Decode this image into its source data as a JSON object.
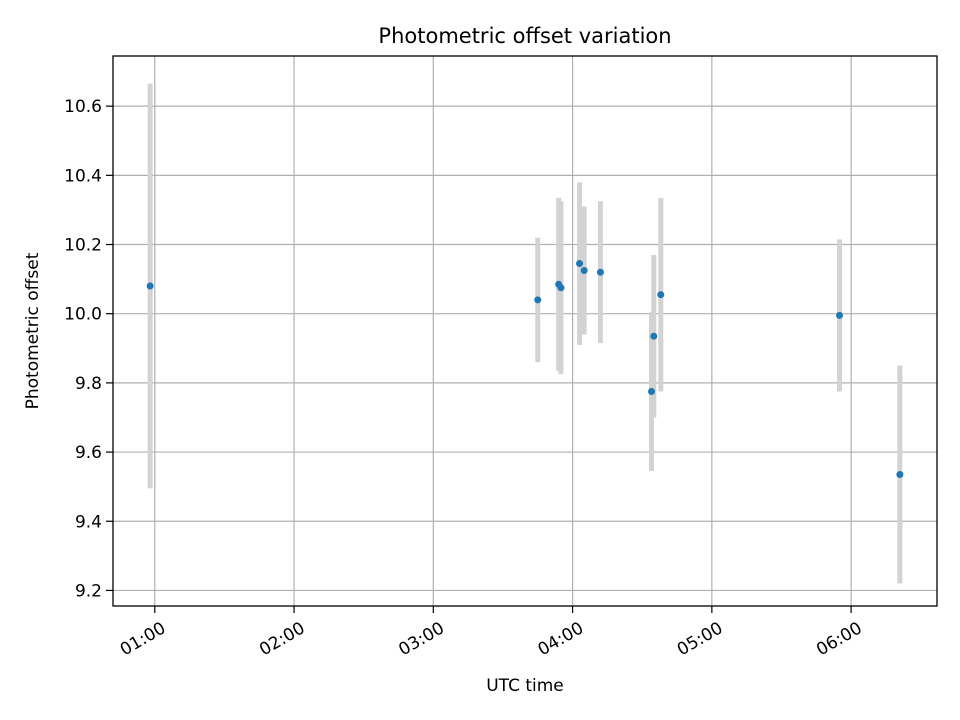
{
  "chart_data": {
    "type": "scatter",
    "title": "Photometric offset variation",
    "xlabel": "UTC time",
    "ylabel": "Photometric offset",
    "x_ticks": [
      "01:00",
      "02:00",
      "03:00",
      "04:00",
      "05:00",
      "06:00"
    ],
    "y_ticks": [
      "9.2",
      "9.4",
      "9.6",
      "9.8",
      "10.0",
      "10.2",
      "10.4",
      "10.6"
    ],
    "xlim": [
      "00:42",
      "06:37"
    ],
    "ylim": [
      9.155,
      10.745
    ],
    "grid": true,
    "point_color": "#1f77b4",
    "errorbar_color": "#d3d3d3",
    "points": [
      {
        "x": "00:58",
        "y": 10.08,
        "err": 0.585
      },
      {
        "x": "03:45",
        "y": 10.04,
        "err": 0.18
      },
      {
        "x": "03:54",
        "y": 10.085,
        "err": 0.25
      },
      {
        "x": "03:55",
        "y": 10.075,
        "err": 0.25
      },
      {
        "x": "04:03",
        "y": 10.145,
        "err": 0.235
      },
      {
        "x": "04:05",
        "y": 10.125,
        "err": 0.185
      },
      {
        "x": "04:12",
        "y": 10.12,
        "err": 0.205
      },
      {
        "x": "04:34",
        "y": 9.775,
        "err": 0.23
      },
      {
        "x": "04:35",
        "y": 9.935,
        "err": 0.235
      },
      {
        "x": "04:38",
        "y": 10.055,
        "err": 0.28
      },
      {
        "x": "05:55",
        "y": 9.995,
        "err": 0.22
      },
      {
        "x": "06:21",
        "y": 9.535,
        "err": 0.315
      }
    ]
  }
}
